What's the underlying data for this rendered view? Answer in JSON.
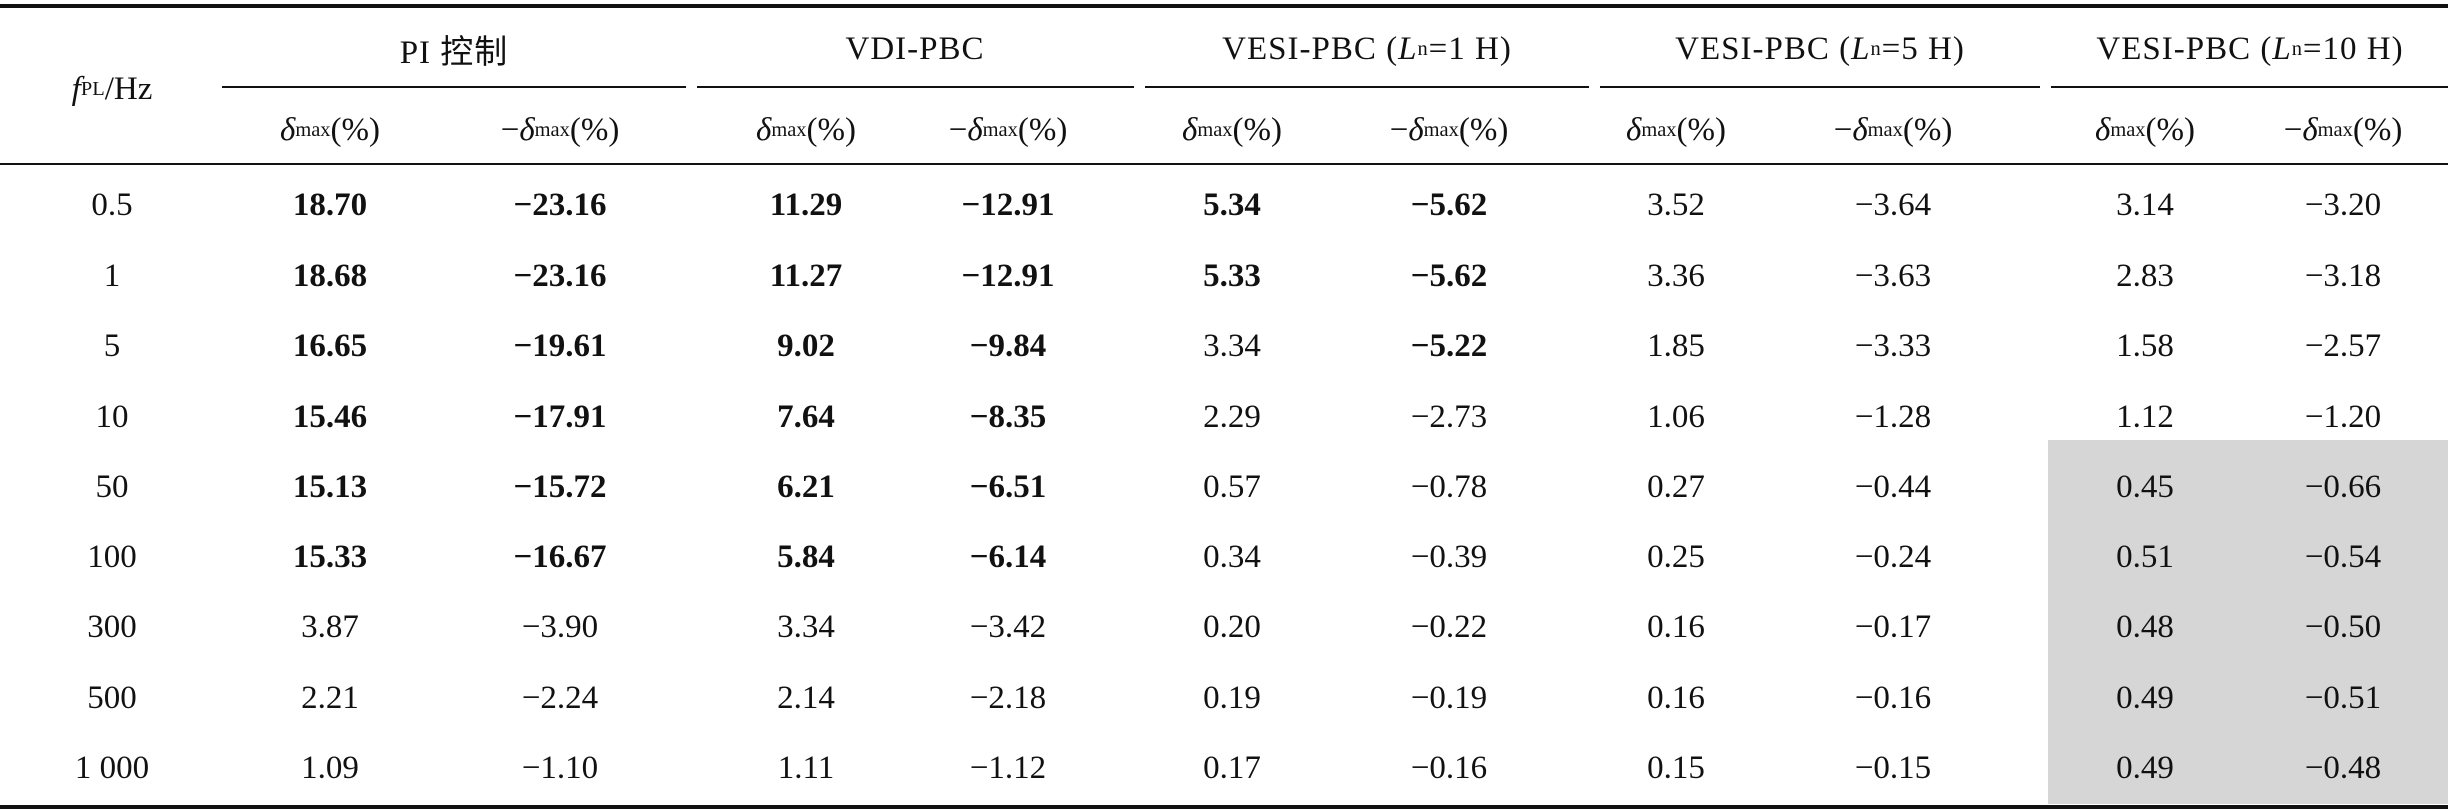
{
  "header": {
    "row_label": "f_PL/Hz",
    "groups": [
      {
        "name": "PI 控制"
      },
      {
        "name": "VDI-PBC"
      },
      {
        "prefix": "VESI-PBC (",
        "var": "L",
        "sub": "n",
        "suffix": "=1 H)"
      },
      {
        "prefix": "VESI-PBC (",
        "var": "L",
        "sub": "n",
        "suffix": "=5 H)"
      },
      {
        "prefix": "VESI-PBC (",
        "var": "L",
        "sub": "n",
        "suffix": "=10 H)"
      }
    ],
    "sub_pos": "δmax(%)",
    "sub_neg": "−δmax(%)"
  },
  "rows": [
    {
      "f": "0.5",
      "v": [
        "18.70",
        "−23.16",
        "11.29",
        "−12.91",
        "5.34",
        "−5.62",
        "3.52",
        "−3.64",
        "3.14",
        "−3.20"
      ]
    },
    {
      "f": "1",
      "v": [
        "18.68",
        "−23.16",
        "11.27",
        "−12.91",
        "5.33",
        "−5.62",
        "3.36",
        "−3.63",
        "2.83",
        "−3.18"
      ]
    },
    {
      "f": "5",
      "v": [
        "16.65",
        "−19.61",
        "9.02",
        "−9.84",
        "3.34",
        "−5.22",
        "1.85",
        "−3.33",
        "1.58",
        "−2.57"
      ]
    },
    {
      "f": "10",
      "v": [
        "15.46",
        "−17.91",
        "7.64",
        "−8.35",
        "2.29",
        "−2.73",
        "1.06",
        "−1.28",
        "1.12",
        "−1.20"
      ]
    },
    {
      "f": "50",
      "v": [
        "15.13",
        "−15.72",
        "6.21",
        "−6.51",
        "0.57",
        "−0.78",
        "0.27",
        "−0.44",
        "0.45",
        "−0.66"
      ]
    },
    {
      "f": "100",
      "v": [
        "15.33",
        "−16.67",
        "5.84",
        "−6.14",
        "0.34",
        "−0.39",
        "0.25",
        "−0.24",
        "0.51",
        "−0.54"
      ]
    },
    {
      "f": "300",
      "v": [
        "3.87",
        "−3.90",
        "3.34",
        "−3.42",
        "0.20",
        "−0.22",
        "0.16",
        "−0.17",
        "0.48",
        "−0.50"
      ]
    },
    {
      "f": "500",
      "v": [
        "2.21",
        "−2.24",
        "2.14",
        "−2.18",
        "0.19",
        "−0.19",
        "0.16",
        "−0.16",
        "0.49",
        "−0.51"
      ]
    },
    {
      "f": "1 000",
      "v": [
        "1.09",
        "−1.10",
        "1.11",
        "−1.12",
        "0.17",
        "−0.16",
        "0.15",
        "−0.15",
        "0.49",
        "−0.48"
      ]
    }
  ],
  "bold_cells": [
    [
      0,
      1,
      2,
      3,
      4,
      5
    ],
    [
      0,
      1,
      2,
      3,
      4,
      5
    ],
    [
      0,
      1,
      2,
      3,
      5
    ],
    [
      0,
      1,
      2,
      3
    ],
    [
      0,
      1,
      2,
      3
    ],
    [
      0,
      1,
      2,
      3
    ],
    [],
    [],
    []
  ],
  "shaded_region": {
    "columns": [
      8,
      9
    ],
    "rows": [
      4,
      5,
      6,
      7,
      8
    ],
    "color": "#d6d6d6"
  }
}
